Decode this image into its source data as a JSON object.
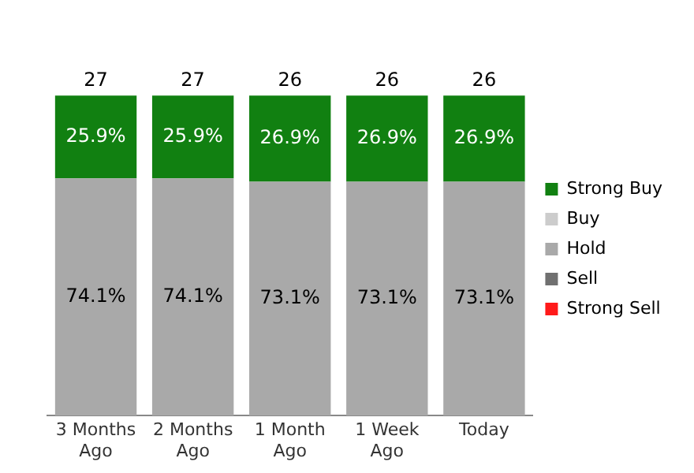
{
  "chart_data": {
    "type": "bar",
    "stacked": true,
    "categories": [
      "3 Months Ago",
      "2 Months Ago",
      "1 Month Ago",
      "1 Week Ago",
      "Today"
    ],
    "series": [
      {
        "name": "Strong Sell",
        "color": "#ff1a1a",
        "values": [
          null,
          null,
          null,
          null,
          null
        ]
      },
      {
        "name": "Sell",
        "color": "#707070",
        "values": [
          null,
          null,
          null,
          null,
          null
        ]
      },
      {
        "name": "Hold",
        "color": "#a9a9a9",
        "values": [
          74.1,
          74.1,
          73.1,
          73.1,
          73.1
        ],
        "value_labels": [
          "74.1%",
          "74.1%",
          "73.1%",
          "73.1%",
          "73.1%"
        ]
      },
      {
        "name": "Buy",
        "color": "#cccccc",
        "values": [
          null,
          null,
          null,
          null,
          null
        ]
      },
      {
        "name": "Strong Buy",
        "color": "#118011",
        "values": [
          25.9,
          25.9,
          26.9,
          26.9,
          26.9
        ],
        "value_labels": [
          "25.9%",
          "25.9%",
          "26.9%",
          "26.9%",
          "26.9%"
        ]
      }
    ],
    "annotations": [
      {
        "text": "27",
        "x": "3 Months Ago",
        "y": 100
      },
      {
        "text": "27",
        "x": "2 Months Ago",
        "y": 100
      },
      {
        "text": "26",
        "x": "1 Month Ago",
        "y": 100
      },
      {
        "text": "26",
        "x": "1 Week Ago",
        "y": 100
      },
      {
        "text": "26",
        "x": "Today",
        "y": 100
      }
    ],
    "legend": "right",
    "grid": false
  }
}
